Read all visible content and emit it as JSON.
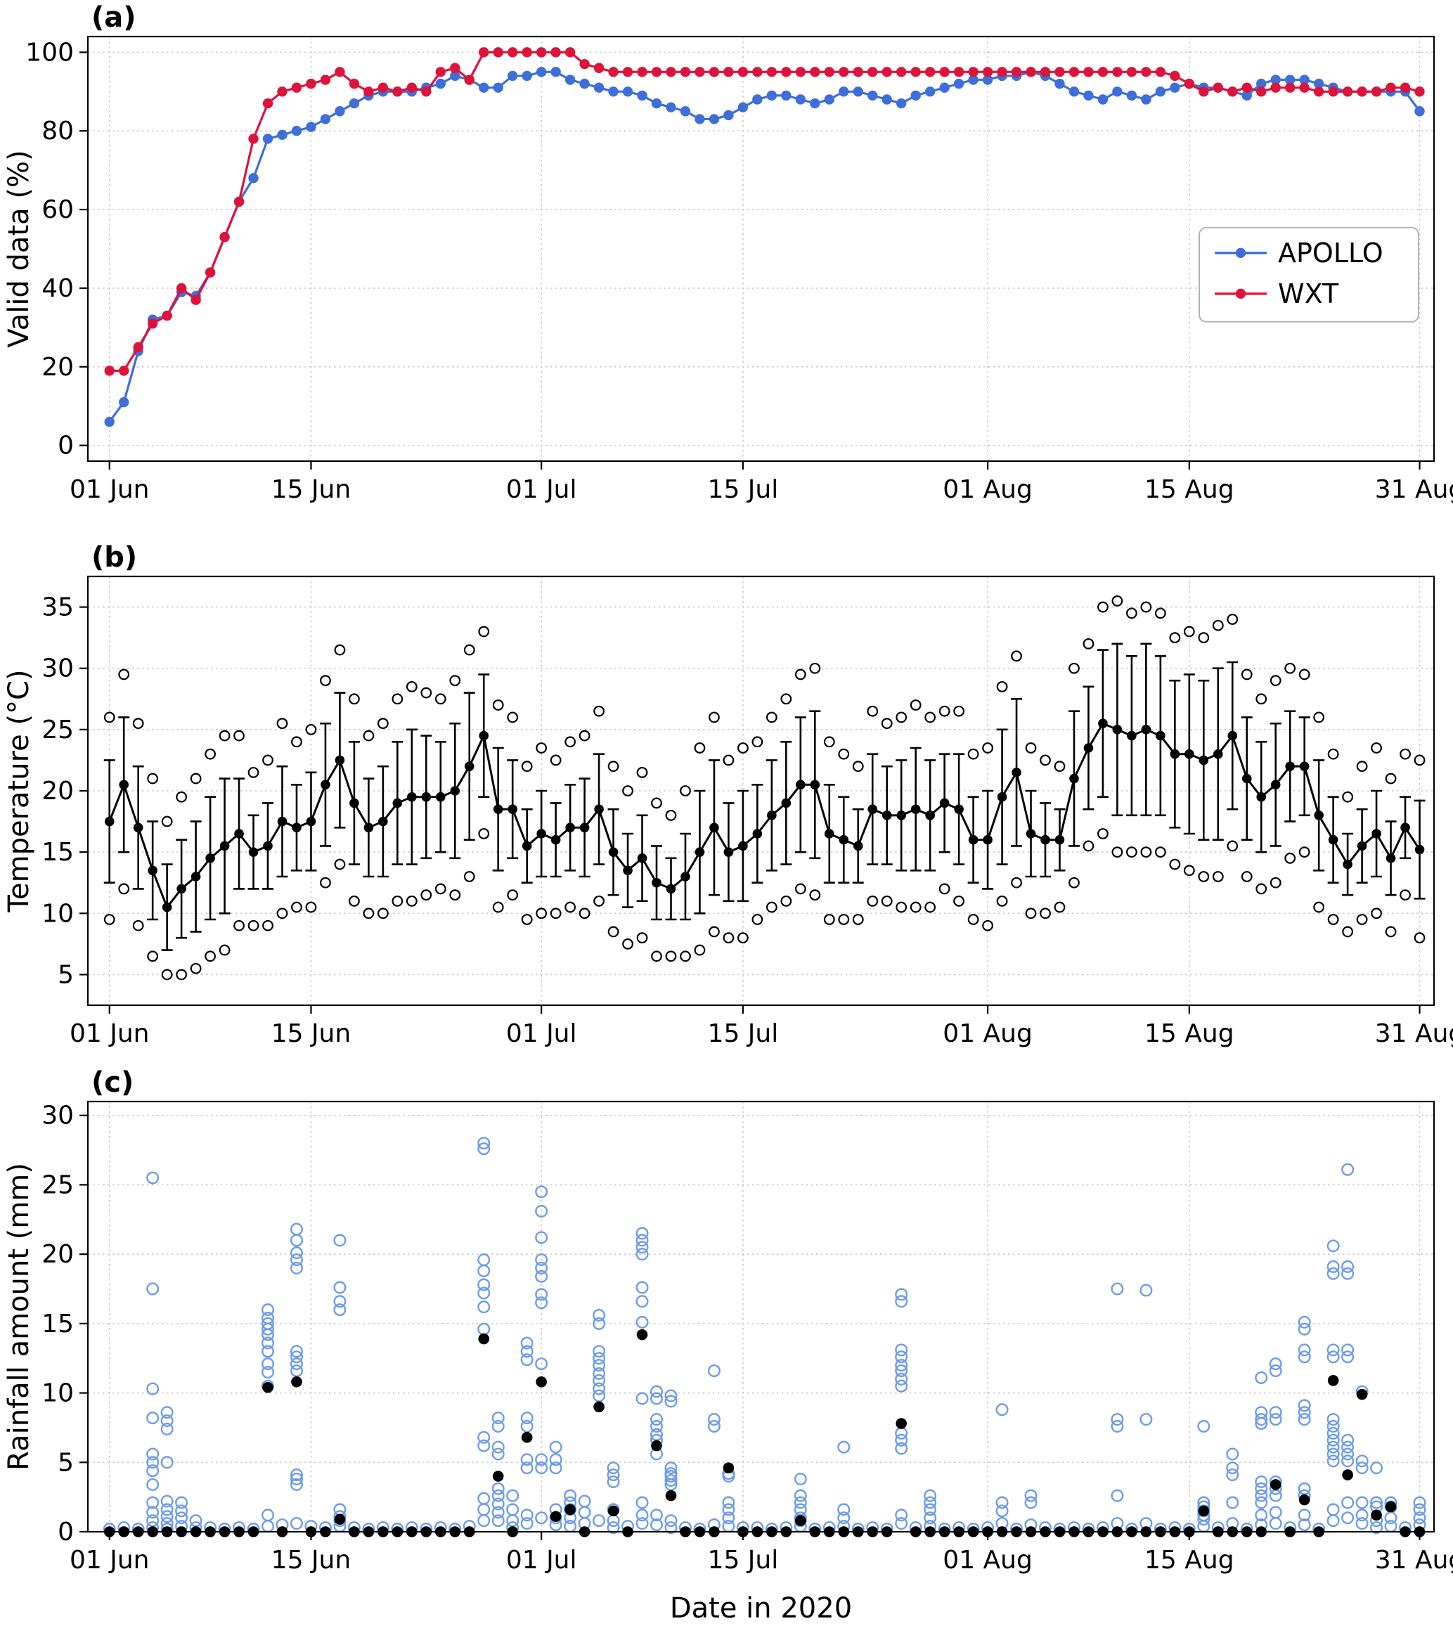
{
  "figure": {
    "xlabel": "Date in 2020",
    "panel_labels": [
      "(a)",
      "(b)",
      "(c)"
    ]
  },
  "colors": {
    "apollo_blue": "#3E6FD8",
    "wxt_red": "#DC143C",
    "rain_blue": "#6C9CE8",
    "black": "#000000",
    "grid": "#c8c8c8"
  },
  "chart_data": [
    {
      "type": "line",
      "panel_label": "(a)",
      "ylabel": "Valid data (%)",
      "ylim": [
        -4,
        104
      ],
      "yticks": [
        0,
        20,
        40,
        60,
        80,
        100
      ],
      "xlim": [
        -1.5,
        92
      ],
      "xticks": [
        {
          "x": 0,
          "label": "01 Jun"
        },
        {
          "x": 14,
          "label": "15 Jun"
        },
        {
          "x": 30,
          "label": "01 Jul"
        },
        {
          "x": 44,
          "label": "15 Jul"
        },
        {
          "x": 61,
          "label": "01 Aug"
        },
        {
          "x": 75,
          "label": "15 Aug"
        },
        {
          "x": 91,
          "label": "31 Aug"
        }
      ],
      "legend": {
        "position": "center right",
        "entries": [
          "APOLLO",
          "WXT"
        ]
      },
      "series": [
        {
          "name": "APOLLO",
          "color_key": "apollo_blue",
          "values": [
            6,
            11,
            24,
            32,
            33,
            39,
            38,
            44,
            53,
            62,
            68,
            78,
            79,
            80,
            81,
            83,
            85,
            87,
            89,
            90,
            90,
            90,
            91,
            92,
            94,
            93,
            91,
            91,
            94,
            94,
            95,
            95,
            93,
            92,
            91,
            90,
            90,
            89,
            87,
            86,
            85,
            83,
            83,
            84,
            86,
            88,
            89,
            89,
            88,
            87,
            88,
            90,
            90,
            89,
            88,
            87,
            89,
            90,
            91,
            92,
            93,
            93,
            94,
            94,
            95,
            94,
            92,
            90,
            89,
            88,
            90,
            89,
            88,
            90,
            91,
            92,
            91,
            91,
            90,
            89,
            92,
            93,
            93,
            93,
            92,
            91,
            90,
            90,
            90,
            90,
            90,
            85
          ]
        },
        {
          "name": "WXT",
          "color_key": "wxt_red",
          "values": [
            19,
            19,
            25,
            31,
            33,
            40,
            37,
            44,
            53,
            62,
            78,
            87,
            90,
            91,
            92,
            93,
            95,
            92,
            90,
            91,
            90,
            91,
            90,
            95,
            96,
            93,
            100,
            100,
            100,
            100,
            100,
            100,
            100,
            97,
            96,
            95,
            95,
            95,
            95,
            95,
            95,
            95,
            95,
            95,
            95,
            95,
            95,
            95,
            95,
            95,
            95,
            95,
            95,
            95,
            95,
            95,
            95,
            95,
            95,
            95,
            95,
            95,
            95,
            95,
            95,
            95,
            95,
            95,
            95,
            95,
            95,
            95,
            95,
            95,
            94,
            92,
            90,
            91,
            90,
            91,
            90,
            91,
            91,
            91,
            90,
            90,
            90,
            90,
            90,
            91,
            91,
            90
          ]
        }
      ]
    },
    {
      "type": "errorbar",
      "panel_label": "(b)",
      "ylabel": "Temperature (°C)",
      "ylim": [
        2.5,
        37.5
      ],
      "yticks": [
        5,
        10,
        15,
        20,
        25,
        30,
        35
      ],
      "xlim": [
        -1.5,
        92
      ],
      "xticks": [
        {
          "x": 0,
          "label": "01 Jun"
        },
        {
          "x": 14,
          "label": "15 Jun"
        },
        {
          "x": 30,
          "label": "01 Jul"
        },
        {
          "x": 44,
          "label": "15 Jul"
        },
        {
          "x": 61,
          "label": "01 Aug"
        },
        {
          "x": 75,
          "label": "15 Aug"
        },
        {
          "x": 91,
          "label": "31 Aug"
        }
      ],
      "mean": [
        17.5,
        20.5,
        17,
        13.5,
        10.5,
        12,
        13,
        14.5,
        15.5,
        16.5,
        15,
        15.5,
        17.5,
        17,
        17.5,
        20.5,
        22.5,
        19,
        17,
        17.5,
        19,
        19.5,
        19.5,
        19.5,
        20,
        22,
        24.5,
        18.5,
        18.5,
        15.5,
        16.5,
        16,
        17,
        17,
        18.5,
        15,
        13.5,
        14.5,
        12.5,
        12,
        13,
        15,
        17,
        15,
        15.5,
        16.5,
        18,
        19,
        20.5,
        20.5,
        16.5,
        16,
        15.5,
        18.5,
        18,
        18,
        18.5,
        18,
        19,
        18.5,
        16,
        16,
        19.5,
        21.5,
        16.5,
        16,
        16,
        21,
        23.5,
        25.5,
        25,
        24.5,
        25,
        24.5,
        23,
        23,
        22.5,
        23,
        24.5,
        21,
        19.5,
        20.5,
        22,
        22,
        18,
        16,
        14,
        15.5,
        16.5,
        14.5,
        17,
        15.2
      ],
      "std": [
        5,
        5.5,
        5,
        4,
        3.5,
        4,
        4.5,
        5,
        5.5,
        4.5,
        3,
        3.5,
        4.5,
        3.5,
        4,
        5,
        5.5,
        5,
        4,
        4.5,
        5,
        5.5,
        5,
        4.5,
        5.5,
        6,
        5,
        5,
        4,
        3,
        3.5,
        3,
        3.5,
        4,
        4.5,
        3.5,
        3,
        3.5,
        3,
        2.5,
        3.5,
        5,
        5.5,
        4,
        4.5,
        4,
        4.5,
        5,
        5.5,
        6,
        4,
        3.5,
        3,
        4.5,
        4,
        4.5,
        5,
        4.5,
        4,
        4.5,
        3.5,
        4,
        5.5,
        6,
        3.5,
        3,
        2.5,
        5.5,
        5,
        6,
        7,
        6.5,
        7,
        6.5,
        6,
        6.5,
        6.5,
        7,
        6,
        5,
        4.5,
        5,
        4.5,
        4,
        4.5,
        3.5,
        2.5,
        3,
        3.5,
        3,
        2.5,
        4
      ],
      "min": [
        9.5,
        12,
        9,
        6.5,
        5,
        5,
        5.5,
        6.5,
        7,
        9,
        9,
        9,
        10,
        10.5,
        10.5,
        12.5,
        14,
        11,
        10,
        10,
        11,
        11,
        11.5,
        12,
        11.5,
        13,
        16.5,
        10.5,
        11.5,
        9.5,
        10,
        10,
        10.5,
        10,
        11,
        8.5,
        7.5,
        8,
        6.5,
        6.5,
        6.5,
        7,
        8.5,
        8,
        8,
        9.5,
        10.5,
        11,
        12,
        11.5,
        9.5,
        9.5,
        9.5,
        11,
        11,
        10.5,
        10.5,
        10.5,
        12,
        11,
        9.5,
        9,
        11,
        12.5,
        10,
        10,
        10.5,
        12.5,
        15.5,
        16.5,
        15,
        15,
        15,
        15,
        14,
        13.5,
        13,
        13,
        15.5,
        13,
        12,
        12.5,
        14.5,
        15,
        10.5,
        9.5,
        8.5,
        9.5,
        10,
        8.5,
        11.5,
        8
      ],
      "max": [
        26,
        29.5,
        25.5,
        21,
        17.5,
        19.5,
        21,
        23,
        24.5,
        24.5,
        21.5,
        22.5,
        25.5,
        24,
        25,
        29,
        31.5,
        27.5,
        24.5,
        25.5,
        27.5,
        28.5,
        28,
        27.5,
        29,
        31.5,
        33,
        27,
        26,
        22,
        23.5,
        22.5,
        24,
        24.5,
        26.5,
        22,
        20,
        21.5,
        19,
        18,
        20,
        23.5,
        26,
        22.5,
        23.5,
        24,
        26,
        27.5,
        29.5,
        30,
        24,
        23,
        22,
        26.5,
        25.5,
        26,
        27,
        26,
        26.5,
        26.5,
        23,
        23.5,
        28.5,
        31,
        23.5,
        22.5,
        22,
        30,
        32,
        35,
        35.5,
        34.5,
        35,
        34.5,
        32.5,
        33,
        32.5,
        33.5,
        34,
        29.5,
        27.5,
        29,
        30,
        29.5,
        26,
        23,
        19.5,
        22,
        23.5,
        21,
        23,
        22.5
      ]
    },
    {
      "type": "scatter",
      "panel_label": "(c)",
      "ylabel": "Rainfall amount (mm)",
      "xlabel": "Date in 2020",
      "ylim": [
        0,
        31
      ],
      "yticks": [
        0,
        5,
        10,
        15,
        20,
        25,
        30
      ],
      "xlim": [
        -1.5,
        92
      ],
      "xticks": [
        {
          "x": 0,
          "label": "01 Jun"
        },
        {
          "x": 14,
          "label": "15 Jun"
        },
        {
          "x": 30,
          "label": "01 Jul"
        },
        {
          "x": 44,
          "label": "15 Jul"
        },
        {
          "x": 61,
          "label": "01 Aug"
        },
        {
          "x": 75,
          "label": "15 Aug"
        },
        {
          "x": 91,
          "label": "31 Aug"
        }
      ],
      "black_daily": [
        0,
        0,
        0,
        0,
        0,
        0,
        0,
        0,
        0,
        0,
        0,
        10.4,
        0,
        10.8,
        0,
        0,
        0.9,
        0,
        0,
        0,
        0,
        0,
        0,
        0,
        0,
        0,
        13.9,
        4,
        0,
        6.8,
        10.8,
        1.1,
        1.6,
        0,
        9,
        1.5,
        0,
        14.2,
        6.2,
        2.6,
        0,
        0,
        0,
        4.6,
        0,
        0,
        0,
        0,
        0.8,
        0,
        0,
        0,
        0,
        0,
        0,
        7.8,
        0,
        0,
        0,
        0,
        0,
        0,
        0,
        0,
        0,
        0,
        0,
        0,
        0,
        0,
        0,
        0,
        0,
        0,
        0,
        0,
        1.5,
        0,
        0,
        0,
        0,
        3.4,
        0,
        2.3,
        0,
        10.9,
        4.1,
        9.9,
        1.2,
        1.8,
        0,
        0
      ],
      "blue_points_by_day": {
        "0": [
          0.2
        ],
        "1": [
          0.3
        ],
        "2": [
          0.2
        ],
        "3": [
          25.5,
          17.5,
          10.3,
          8.2,
          5.6,
          5,
          4.4,
          3.4,
          2.1,
          1.4,
          0.8,
          0.3
        ],
        "4": [
          8.6,
          8,
          7.4,
          5,
          2.2,
          1.6,
          1.1,
          0.6,
          0.2
        ],
        "5": [
          2.1,
          1.5,
          1,
          0.4
        ],
        "6": [
          0.8,
          0.3
        ],
        "7": [
          0.3
        ],
        "8": [
          0.2
        ],
        "9": [
          0.3
        ],
        "10": [
          0.2
        ],
        "11": [
          16,
          15.4,
          15,
          14.6,
          14.2,
          13.6,
          13,
          12.1,
          11.5,
          10.5,
          1.2,
          0.4
        ],
        "12": [
          0.5
        ],
        "13": [
          21.8,
          21,
          20.1,
          19.6,
          19,
          13,
          12.6,
          12.1,
          11.6,
          4.1,
          3.8,
          3.4,
          0.6
        ],
        "14": [
          0.4
        ],
        "15": [
          0.3
        ],
        "16": [
          21,
          17.6,
          16.6,
          16,
          1.6,
          1.1,
          0.8,
          0.4
        ],
        "17": [
          0.3
        ],
        "18": [
          0.2
        ],
        "19": [
          0.3
        ],
        "20": [
          0.2
        ],
        "21": [
          0.3
        ],
        "22": [
          0.2
        ],
        "23": [
          0.3
        ],
        "24": [
          0.2
        ],
        "25": [
          0.4
        ],
        "26": [
          28,
          27.6,
          19.6,
          18.8,
          17.8,
          17.2,
          16.2,
          14.6,
          6.8,
          6.2,
          2.4,
          1.6,
          0.8
        ],
        "27": [
          8.2,
          7.6,
          6.1,
          5.6,
          3.1,
          2.6,
          2,
          1.4,
          0.8
        ],
        "28": [
          2.6,
          1.6,
          0.8,
          0.3
        ],
        "29": [
          13.6,
          13,
          12.4,
          8.2,
          7.6,
          5.2,
          4.6,
          1.2,
          0.6
        ],
        "30": [
          24.5,
          23.1,
          21.2,
          19.6,
          19,
          18.4,
          17.1,
          16.5,
          12.1,
          5.2,
          4.6,
          1
        ],
        "31": [
          6.1,
          5.2,
          4.6,
          1.6,
          1,
          0.5
        ],
        "32": [
          2.6,
          2.1,
          1.6,
          1,
          0.4
        ],
        "33": [
          2.2,
          1.4,
          0.6
        ],
        "34": [
          15.6,
          15,
          13,
          12.5,
          12,
          11.4,
          10.9,
          10.3,
          9.8,
          0.8
        ],
        "35": [
          4.6,
          4.1,
          3.6,
          1.6,
          0.8,
          0.3
        ],
        "36": [
          0.4
        ],
        "37": [
          21.5,
          21,
          20.5,
          20,
          17.6,
          16.6,
          15.1,
          9.6,
          2.1,
          1.2,
          0.6
        ],
        "38": [
          10.1,
          9.6,
          8.1,
          7.6,
          7,
          6.6,
          5.6,
          1.2,
          0.5
        ],
        "39": [
          9.8,
          9.4,
          4.6,
          4.2,
          4,
          3.7,
          3.4,
          0.8,
          0.3
        ],
        "40": [
          0.3
        ],
        "41": [
          0.2
        ],
        "42": [
          11.6,
          8.1,
          7.6,
          0.5
        ],
        "43": [
          4.2,
          4,
          2.1,
          1.6,
          1,
          0.4
        ],
        "44": [
          0.3
        ],
        "45": [
          0.3
        ],
        "46": [
          0.2
        ],
        "47": [
          0.3
        ],
        "48": [
          3.8,
          2.6,
          2.1,
          1.6,
          1,
          0.8,
          0.4
        ],
        "49": [
          0.2
        ],
        "50": [
          0.3
        ],
        "51": [
          6.1,
          1.6,
          1,
          0.4
        ],
        "52": [
          0.2
        ],
        "53": [
          0.3
        ],
        "54": [
          0.2
        ],
        "55": [
          17.1,
          16.6,
          13.1,
          12.6,
          12,
          11.6,
          11,
          10.5,
          7.1,
          6.6,
          6,
          1.2,
          0.6
        ],
        "56": [
          0.3
        ],
        "57": [
          2.6,
          2.1,
          1.6,
          1,
          0.4
        ],
        "58": [
          0.2
        ],
        "59": [
          0.3
        ],
        "60": [
          0.2
        ],
        "61": [
          0.3
        ],
        "62": [
          8.8,
          2.1,
          1.5,
          0.6
        ],
        "63": [
          0.2
        ],
        "64": [
          2.6,
          2.1,
          0.5
        ],
        "65": [
          0.3
        ],
        "66": [
          0.2
        ],
        "67": [
          0.3
        ],
        "68": [
          0.2
        ],
        "69": [
          0.3
        ],
        "70": [
          17.5,
          8.1,
          7.6,
          2.6,
          0.6
        ],
        "71": [
          0.2
        ],
        "72": [
          17.4,
          8.1,
          0.6
        ],
        "73": [
          0.2
        ],
        "74": [
          0.3
        ],
        "75": [
          0.2
        ],
        "76": [
          7.6,
          2.1,
          1.8,
          1.5,
          1.2,
          0.9,
          0.4
        ],
        "77": [
          0.3
        ],
        "78": [
          5.6,
          4.6,
          4.1,
          2.1,
          0.6
        ],
        "79": [
          0.2
        ],
        "80": [
          11.1,
          8.6,
          8.1,
          7.8,
          3.6,
          3.1,
          2.6,
          2.1,
          1.2,
          0.5
        ],
        "81": [
          12.1,
          11.6,
          8.6,
          8.1,
          3.6,
          3.1,
          2.6,
          1.4,
          0.6
        ],
        "82": [
          0.3
        ],
        "83": [
          15.1,
          14.6,
          13.1,
          12.6,
          9.1,
          8.6,
          8.1,
          3.1,
          2.6,
          1.2,
          0.5
        ],
        "84": [
          0.2
        ],
        "85": [
          20.6,
          19.1,
          18.6,
          13.1,
          12.6,
          8.1,
          7.6,
          7.1,
          6.6,
          6.1,
          5.6,
          5.1,
          1.6,
          0.8
        ],
        "86": [
          26.1,
          19.1,
          18.6,
          13.1,
          12.6,
          6.6,
          6.1,
          5.6,
          5.1,
          2.1,
          1
        ],
        "87": [
          10.1,
          5.1,
          4.6,
          2.1,
          1.2,
          0.6
        ],
        "88": [
          4.6,
          2.1,
          1.8,
          0.8,
          0.3
        ],
        "89": [
          2.1,
          1.8,
          1,
          0.4
        ],
        "90": [
          0.3
        ],
        "91": [
          2.1,
          1.6,
          1,
          0.5
        ]
      }
    }
  ]
}
